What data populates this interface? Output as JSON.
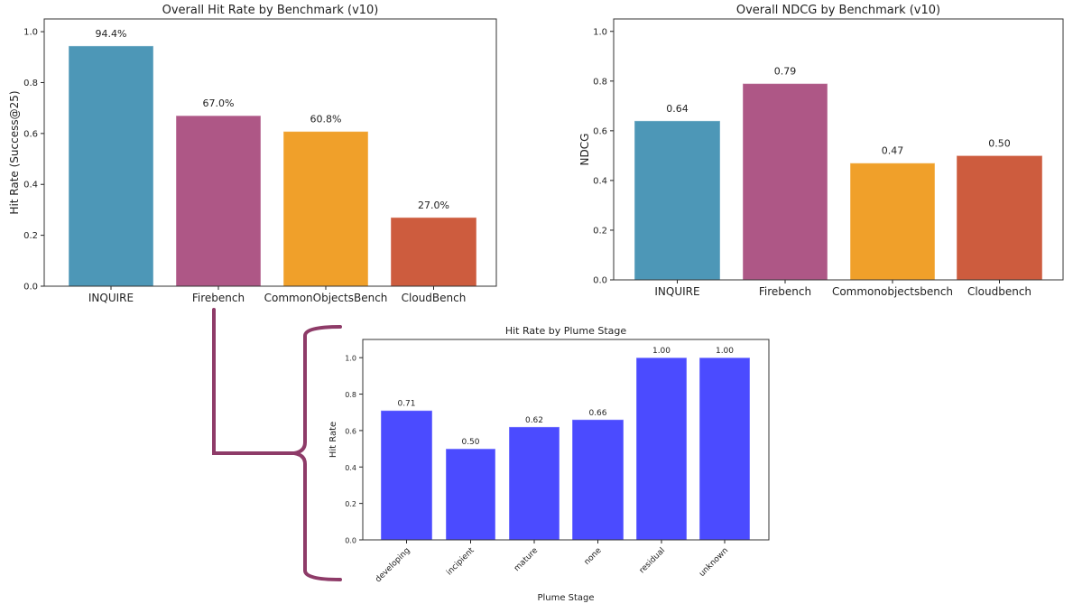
{
  "chart_data": [
    {
      "type": "bar",
      "title": "Overall Hit Rate by Benchmark (v10)",
      "xlabel": "",
      "ylabel": "Hit Rate (Success@25)",
      "categories": [
        "INQUIRE",
        "Firebench",
        "CommonObjectsBench",
        "CloudBench"
      ],
      "values": [
        0.944,
        0.67,
        0.608,
        0.27
      ],
      "data_labels": [
        "94.4%",
        "67.0%",
        "60.8%",
        "27.0%"
      ],
      "colors": [
        "#4d97b7",
        "#ae5786",
        "#f0a02a",
        "#cd5c3e"
      ],
      "ylim": [
        0,
        1.05
      ],
      "yticks": [
        "0.0",
        "0.2",
        "0.4",
        "0.6",
        "0.8",
        "1.0"
      ],
      "grid": false
    },
    {
      "type": "bar",
      "title": "Overall NDCG by Benchmark (v10)",
      "xlabel": "",
      "ylabel": "NDCG",
      "categories": [
        "INQUIRE",
        "Firebench",
        "Commonobjectsbench",
        "Cloudbench"
      ],
      "values": [
        0.64,
        0.79,
        0.47,
        0.5
      ],
      "data_labels": [
        "0.64",
        "0.79",
        "0.47",
        "0.50"
      ],
      "colors": [
        "#4d97b7",
        "#ae5786",
        "#f0a02a",
        "#cd5c3e"
      ],
      "ylim": [
        0,
        1.05
      ],
      "yticks": [
        "0.0",
        "0.2",
        "0.4",
        "0.6",
        "0.8",
        "1.0"
      ],
      "grid": false
    },
    {
      "type": "bar",
      "title": "Hit Rate by Plume Stage",
      "xlabel": "Plume Stage",
      "ylabel": "Hit Rate",
      "categories": [
        "developing",
        "incipient",
        "mature",
        "none",
        "residual",
        "unknown"
      ],
      "values": [
        0.71,
        0.5,
        0.62,
        0.66,
        1.0,
        1.0
      ],
      "data_labels": [
        "0.71",
        "0.50",
        "0.62",
        "0.66",
        "1.00",
        "1.00"
      ],
      "colors": [
        "#4b4bff"
      ],
      "ylim": [
        0,
        1.1
      ],
      "yticks": [
        "0.0",
        "0.2",
        "0.4",
        "0.6",
        "0.8",
        "1.0"
      ],
      "grid": false
    }
  ],
  "annotation": {
    "connector_color": "#8e3b68"
  }
}
